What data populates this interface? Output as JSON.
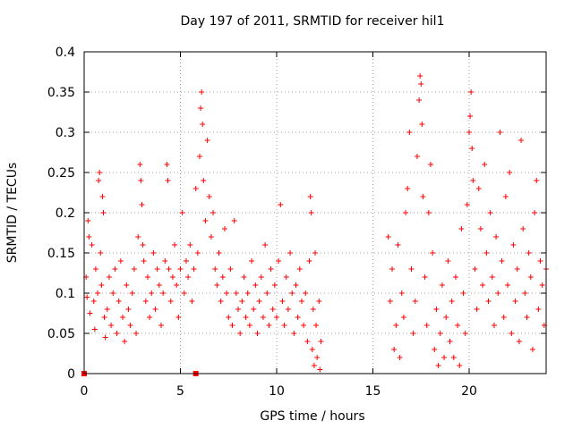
{
  "chart_data": {
    "type": "scatter",
    "title": "Day 197 of 2011, SRMTID for receiver hil1",
    "xlabel": "GPS time / hours",
    "ylabel": "SRMTID / TECUs",
    "xlim": [
      0,
      24
    ],
    "ylim": [
      0,
      0.4
    ],
    "x_ticks": [
      0,
      5,
      10,
      15,
      20
    ],
    "x_tick_labels": [
      "0",
      "5",
      "10",
      "15",
      "20"
    ],
    "y_ticks": [
      0,
      0.05,
      0.1,
      0.15,
      0.2,
      0.25,
      0.3,
      0.35,
      0.4
    ],
    "y_tick_labels": [
      "0",
      "0.05",
      "0.1",
      "0.15",
      "0.2",
      "0.25",
      "0.3",
      "0.35",
      "0.4"
    ],
    "grid": true,
    "marker": "+",
    "color": "#ff0000",
    "square_markers": [
      {
        "x": 0.0,
        "y": 0.0
      },
      {
        "x": 5.8,
        "y": 0.0
      }
    ],
    "series": [
      {
        "name": "SRMTID",
        "points": [
          [
            0.1,
            0.12
          ],
          [
            0.15,
            0.095
          ],
          [
            0.2,
            0.19
          ],
          [
            0.25,
            0.17
          ],
          [
            0.3,
            0.075
          ],
          [
            0.4,
            0.16
          ],
          [
            0.5,
            0.09
          ],
          [
            0.55,
            0.055
          ],
          [
            0.6,
            0.13
          ],
          [
            0.7,
            0.1
          ],
          [
            0.75,
            0.24
          ],
          [
            0.8,
            0.25
          ],
          [
            0.85,
            0.15
          ],
          [
            0.9,
            0.11
          ],
          [
            0.95,
            0.22
          ],
          [
            1.0,
            0.2
          ],
          [
            1.05,
            0.07
          ],
          [
            1.1,
            0.045
          ],
          [
            1.2,
            0.08
          ],
          [
            1.3,
            0.12
          ],
          [
            1.4,
            0.06
          ],
          [
            1.5,
            0.1
          ],
          [
            1.6,
            0.13
          ],
          [
            1.7,
            0.05
          ],
          [
            1.8,
            0.09
          ],
          [
            1.9,
            0.14
          ],
          [
            2.0,
            0.07
          ],
          [
            2.1,
            0.04
          ],
          [
            2.2,
            0.11
          ],
          [
            2.3,
            0.08
          ],
          [
            2.4,
            0.06
          ],
          [
            2.5,
            0.1
          ],
          [
            2.6,
            0.13
          ],
          [
            2.7,
            0.05
          ],
          [
            2.8,
            0.17
          ],
          [
            2.9,
            0.26
          ],
          [
            2.95,
            0.24
          ],
          [
            3.0,
            0.21
          ],
          [
            3.05,
            0.16
          ],
          [
            3.1,
            0.14
          ],
          [
            3.2,
            0.09
          ],
          [
            3.3,
            0.12
          ],
          [
            3.4,
            0.07
          ],
          [
            3.5,
            0.1
          ],
          [
            3.6,
            0.15
          ],
          [
            3.7,
            0.08
          ],
          [
            3.8,
            0.13
          ],
          [
            3.9,
            0.11
          ],
          [
            4.0,
            0.06
          ],
          [
            4.1,
            0.1
          ],
          [
            4.2,
            0.14
          ],
          [
            4.3,
            0.26
          ],
          [
            4.35,
            0.24
          ],
          [
            4.4,
            0.13
          ],
          [
            4.5,
            0.09
          ],
          [
            4.6,
            0.12
          ],
          [
            4.7,
            0.16
          ],
          [
            4.8,
            0.11
          ],
          [
            4.9,
            0.07
          ],
          [
            5.0,
            0.13
          ],
          [
            5.1,
            0.2
          ],
          [
            5.2,
            0.1
          ],
          [
            5.3,
            0.14
          ],
          [
            5.4,
            0.12
          ],
          [
            5.5,
            0.16
          ],
          [
            5.6,
            0.09
          ],
          [
            5.7,
            0.13
          ],
          [
            5.8,
            0.23
          ],
          [
            5.9,
            0.15
          ],
          [
            6.0,
            0.27
          ],
          [
            6.05,
            0.33
          ],
          [
            6.1,
            0.35
          ],
          [
            6.15,
            0.31
          ],
          [
            6.2,
            0.24
          ],
          [
            6.3,
            0.19
          ],
          [
            6.4,
            0.29
          ],
          [
            6.5,
            0.22
          ],
          [
            6.6,
            0.17
          ],
          [
            6.7,
            0.2
          ],
          [
            6.8,
            0.13
          ],
          [
            6.9,
            0.11
          ],
          [
            7.0,
            0.15
          ],
          [
            7.1,
            0.09
          ],
          [
            7.2,
            0.12
          ],
          [
            7.3,
            0.18
          ],
          [
            7.4,
            0.1
          ],
          [
            7.5,
            0.07
          ],
          [
            7.6,
            0.13
          ],
          [
            7.7,
            0.06
          ],
          [
            7.8,
            0.19
          ],
          [
            7.9,
            0.1
          ],
          [
            8.0,
            0.08
          ],
          [
            8.1,
            0.05
          ],
          [
            8.2,
            0.09
          ],
          [
            8.3,
            0.12
          ],
          [
            8.4,
            0.07
          ],
          [
            8.5,
            0.1
          ],
          [
            8.6,
            0.06
          ],
          [
            8.7,
            0.14
          ],
          [
            8.8,
            0.08
          ],
          [
            8.9,
            0.11
          ],
          [
            9.0,
            0.05
          ],
          [
            9.1,
            0.09
          ],
          [
            9.2,
            0.12
          ],
          [
            9.3,
            0.07
          ],
          [
            9.4,
            0.16
          ],
          [
            9.5,
            0.1
          ],
          [
            9.6,
            0.06
          ],
          [
            9.7,
            0.13
          ],
          [
            9.8,
            0.08
          ],
          [
            9.9,
            0.11
          ],
          [
            10.0,
            0.07
          ],
          [
            10.1,
            0.14
          ],
          [
            10.2,
            0.21
          ],
          [
            10.3,
            0.09
          ],
          [
            10.4,
            0.06
          ],
          [
            10.5,
            0.12
          ],
          [
            10.6,
            0.08
          ],
          [
            10.7,
            0.15
          ],
          [
            10.8,
            0.1
          ],
          [
            10.9,
            0.05
          ],
          [
            11.0,
            0.11
          ],
          [
            11.1,
            0.07
          ],
          [
            11.2,
            0.13
          ],
          [
            11.3,
            0.09
          ],
          [
            11.4,
            0.06
          ],
          [
            11.5,
            0.1
          ],
          [
            11.6,
            0.04
          ],
          [
            11.7,
            0.14
          ],
          [
            11.75,
            0.22
          ],
          [
            11.8,
            0.2
          ],
          [
            11.85,
            0.03
          ],
          [
            11.9,
            0.08
          ],
          [
            11.95,
            0.01
          ],
          [
            12.0,
            0.15
          ],
          [
            12.05,
            0.06
          ],
          [
            12.1,
            0.02
          ],
          [
            12.2,
            0.09
          ],
          [
            12.25,
            0.005
          ],
          [
            12.3,
            0.04
          ],
          [
            15.8,
            0.17
          ],
          [
            15.9,
            0.09
          ],
          [
            16.0,
            0.13
          ],
          [
            16.1,
            0.03
          ],
          [
            16.2,
            0.06
          ],
          [
            16.3,
            0.16
          ],
          [
            16.4,
            0.02
          ],
          [
            16.5,
            0.1
          ],
          [
            16.6,
            0.07
          ],
          [
            16.7,
            0.2
          ],
          [
            16.8,
            0.23
          ],
          [
            16.9,
            0.3
          ],
          [
            17.0,
            0.13
          ],
          [
            17.1,
            0.05
          ],
          [
            17.2,
            0.09
          ],
          [
            17.3,
            0.27
          ],
          [
            17.4,
            0.34
          ],
          [
            17.45,
            0.37
          ],
          [
            17.5,
            0.36
          ],
          [
            17.55,
            0.31
          ],
          [
            17.6,
            0.22
          ],
          [
            17.7,
            0.12
          ],
          [
            17.8,
            0.06
          ],
          [
            17.9,
            0.2
          ],
          [
            18.0,
            0.26
          ],
          [
            18.1,
            0.15
          ],
          [
            18.2,
            0.03
          ],
          [
            18.3,
            0.08
          ],
          [
            18.4,
            0.01
          ],
          [
            18.5,
            0.05
          ],
          [
            18.6,
            0.11
          ],
          [
            18.7,
            0.02
          ],
          [
            18.8,
            0.07
          ],
          [
            18.9,
            0.14
          ],
          [
            19.0,
            0.04
          ],
          [
            19.1,
            0.09
          ],
          [
            19.2,
            0.02
          ],
          [
            19.3,
            0.12
          ],
          [
            19.4,
            0.06
          ],
          [
            19.5,
            0.01
          ],
          [
            19.6,
            0.18
          ],
          [
            19.7,
            0.1
          ],
          [
            19.8,
            0.05
          ],
          [
            19.9,
            0.21
          ],
          [
            20.0,
            0.3
          ],
          [
            20.05,
            0.32
          ],
          [
            20.1,
            0.35
          ],
          [
            20.15,
            0.28
          ],
          [
            20.2,
            0.24
          ],
          [
            20.3,
            0.13
          ],
          [
            20.4,
            0.08
          ],
          [
            20.5,
            0.23
          ],
          [
            20.6,
            0.18
          ],
          [
            20.7,
            0.11
          ],
          [
            20.8,
            0.26
          ],
          [
            20.9,
            0.15
          ],
          [
            21.0,
            0.09
          ],
          [
            21.1,
            0.2
          ],
          [
            21.2,
            0.12
          ],
          [
            21.3,
            0.06
          ],
          [
            21.4,
            0.17
          ],
          [
            21.5,
            0.1
          ],
          [
            21.6,
            0.3
          ],
          [
            21.7,
            0.14
          ],
          [
            21.8,
            0.07
          ],
          [
            21.9,
            0.22
          ],
          [
            22.0,
            0.11
          ],
          [
            22.1,
            0.25
          ],
          [
            22.2,
            0.05
          ],
          [
            22.3,
            0.16
          ],
          [
            22.4,
            0.09
          ],
          [
            22.5,
            0.13
          ],
          [
            22.6,
            0.04
          ],
          [
            22.7,
            0.29
          ],
          [
            22.8,
            0.18
          ],
          [
            22.9,
            0.1
          ],
          [
            23.0,
            0.07
          ],
          [
            23.1,
            0.15
          ],
          [
            23.2,
            0.12
          ],
          [
            23.3,
            0.03
          ],
          [
            23.4,
            0.2
          ],
          [
            23.5,
            0.24
          ],
          [
            23.6,
            0.08
          ],
          [
            23.7,
            0.14
          ],
          [
            23.8,
            0.11
          ],
          [
            23.9,
            0.06
          ],
          [
            24.0,
            0.13
          ]
        ]
      }
    ]
  }
}
